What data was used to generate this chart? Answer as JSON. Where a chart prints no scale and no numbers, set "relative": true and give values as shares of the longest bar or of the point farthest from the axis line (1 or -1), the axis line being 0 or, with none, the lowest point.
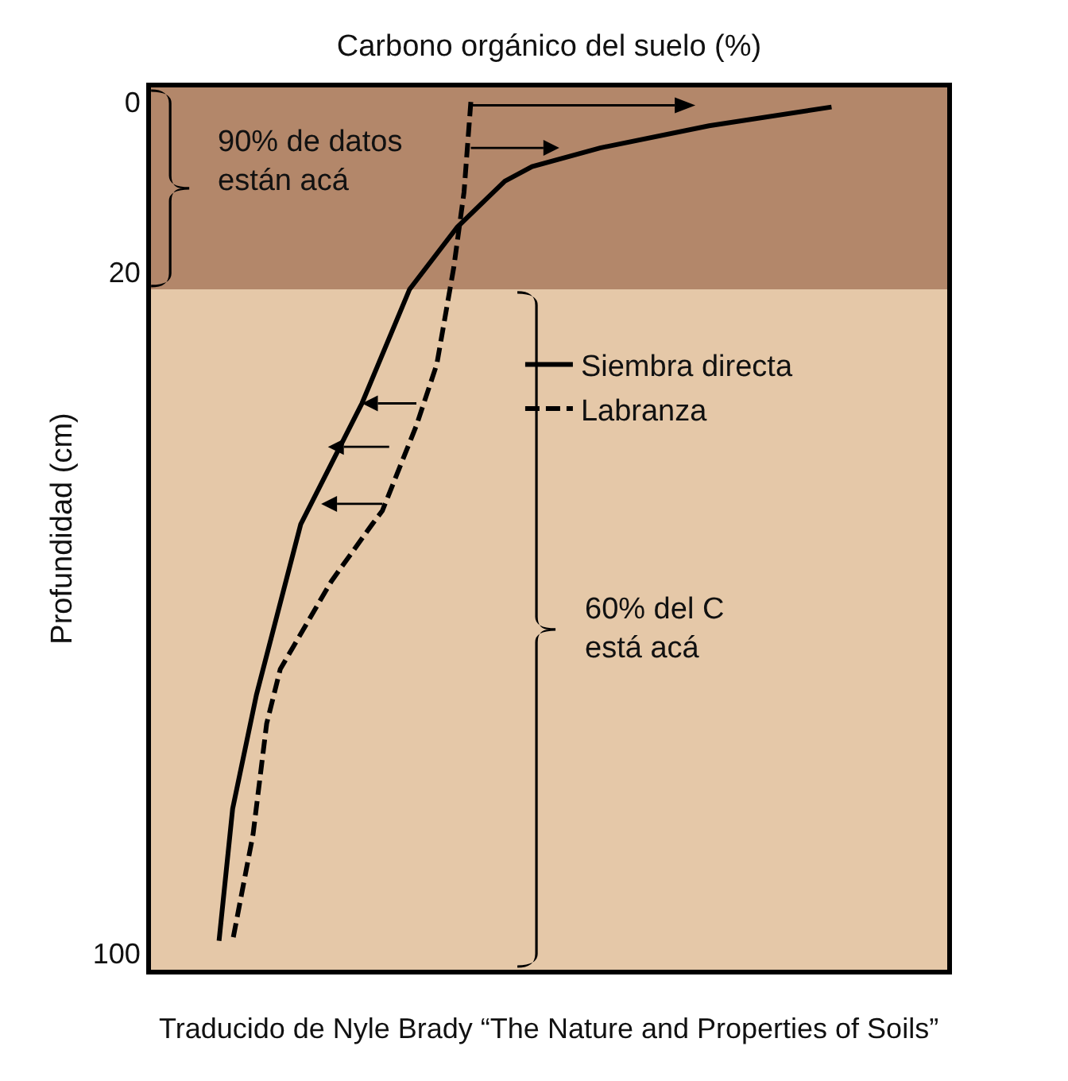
{
  "chart_data": {
    "type": "line",
    "orientation": "horizontal",
    "relative": true,
    "xlabel": "Carbono orgánico del suelo (%)",
    "ylabel": "Profundidad (cm)",
    "ylim": [
      101.9,
      -1.7
    ],
    "yticks": [
      0,
      20,
      100
    ],
    "grid": false,
    "legend": "right",
    "marker": "none",
    "series": [
      {
        "name": "Siembra directa",
        "color": "#000000",
        "line_style": "solid",
        "values": [
          1,
          0.82,
          0.66,
          0.56,
          0.52,
          0.45,
          0.38,
          0.31,
          0.22,
          0.155,
          0.12,
          0.1
        ],
        "x": [
          0.6,
          2.8,
          5.4,
          7.6,
          9.3,
          14.7,
          22,
          35.4,
          49.6,
          69.6,
          83,
          98.5
        ]
      },
      {
        "name": "Labranza",
        "color": "#000000",
        "line_style": "dashed",
        "values": [
          0.47,
          0.46,
          0.445,
          0.42,
          0.39,
          0.34,
          0.325,
          0.265,
          0.19,
          0.17,
          0.15,
          0.12
        ],
        "x": [
          0,
          10.6,
          19.4,
          30.8,
          38,
          48,
          49.6,
          56.3,
          66.6,
          73,
          86,
          98.5
        ]
      }
    ],
    "bands": [
      {
        "axis": "y",
        "from": -1.7,
        "to": 22,
        "color": "#b3876a"
      },
      {
        "axis": "y",
        "from": 22,
        "to": 101.9,
        "color": "#e5c8a8"
      }
    ],
    "annotations": [
      "90% de datos\nestán acá",
      "60% del C\nestá acá",
      "Traducido de Nyle Brady “The Nature and Properties of Soils”"
    ]
  }
}
